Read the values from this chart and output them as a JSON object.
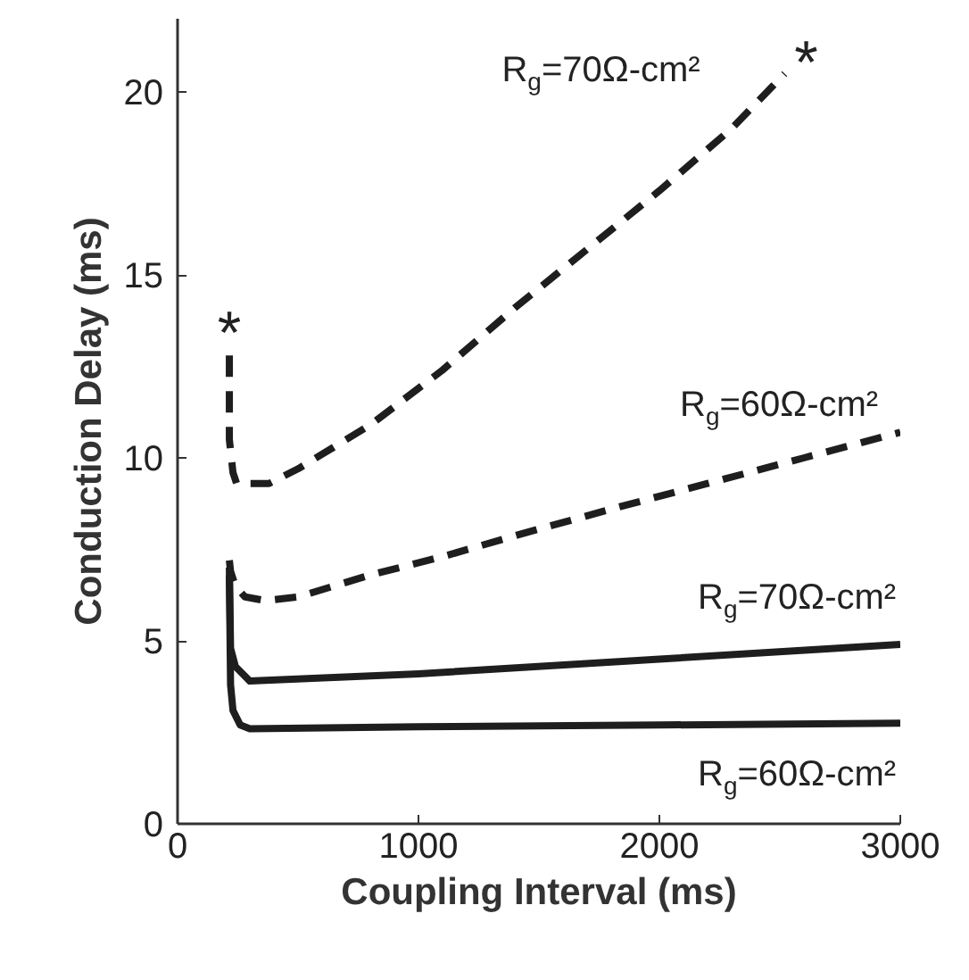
{
  "chart_data": {
    "type": "line",
    "xlabel": "Coupling Interval (ms)",
    "ylabel": "Conduction Delay (ms)",
    "xlim": [
      0,
      3000
    ],
    "ylim": [
      0,
      22
    ],
    "xticks": [
      0,
      1000,
      2000,
      3000
    ],
    "yticks": [
      0,
      5,
      10,
      15,
      20
    ],
    "grid": false,
    "marker": "none",
    "series": [
      {
        "name": "R$_{g}$=70Ω-cm²",
        "color": "#1e1e1e",
        "line_style": "dashed",
        "x": [
          215,
          215,
          230,
          245,
          380,
          500,
          800,
          1100,
          1400,
          1700,
          2000,
          2300,
          2520
        ],
        "values": [
          12.8,
          10.5,
          9.6,
          9.3,
          9.3,
          9.7,
          10.9,
          12.4,
          14.1,
          15.7,
          17.3,
          19.0,
          20.5
        ]
      },
      {
        "name": "R$_{g}$=60Ω-cm²",
        "color": "#1e1e1e",
        "line_style": "dashed",
        "x": [
          215,
          220,
          240,
          280,
          363,
          500,
          800,
          1100,
          1415,
          1800,
          2200,
          2600,
          3000
        ],
        "values": [
          7.2,
          6.9,
          6.5,
          6.2,
          6.1,
          6.2,
          6.8,
          7.3,
          7.9,
          8.6,
          9.3,
          10.0,
          10.7
        ]
      },
      {
        "name": "R$_{g}$=70Ω-cm²",
        "color": "#1e1e1e",
        "line_style": "solid",
        "x": [
          215,
          220,
          240,
          300,
          1000,
          2000,
          3000
        ],
        "values": [
          7.0,
          4.8,
          4.3,
          3.9,
          4.1,
          4.5,
          4.9
        ]
      },
      {
        "name": "R$_{g}$=60Ω-cm²",
        "color": "#1e1e1e",
        "line_style": "solid",
        "x": [
          215,
          220,
          230,
          260,
          300,
          1000,
          2000,
          3000
        ],
        "values": [
          6.8,
          3.8,
          3.1,
          2.7,
          2.6,
          2.65,
          2.7,
          2.75
        ]
      }
    ],
    "annotations": [
      {
        "text": "*",
        "x": 215,
        "y": 12.8
      },
      {
        "text": "*",
        "x": 2520,
        "y": 20.5
      }
    ]
  }
}
